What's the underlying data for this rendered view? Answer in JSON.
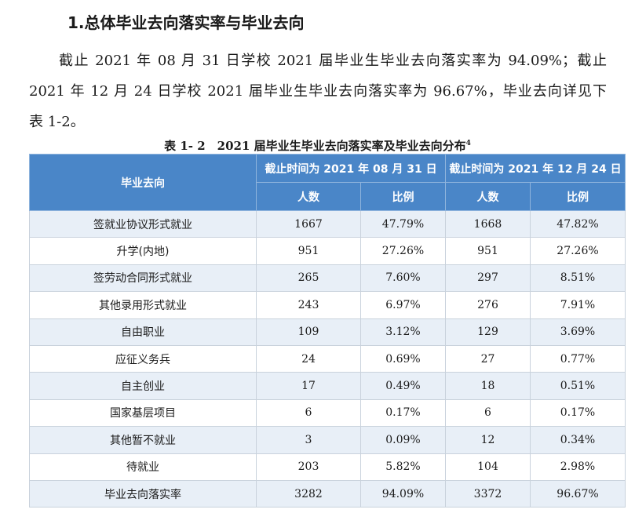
{
  "heading": "1.总体毕业去向落实率与毕业去向",
  "paragraph": {
    "line1": "截止 2021 年 08 月 31 日学校 2021 届毕业生毕业去向落实率为 94.09%；截止",
    "line2": "2021 年 12 月 24 日学校 2021 届毕业生毕业去向落实率为 96.67%，毕业去向详见下",
    "line3": "表 1-2。"
  },
  "table": {
    "caption": "表 1- 2　2021 届毕业生毕业去向落实率及毕业去向分布",
    "caption_note": "4",
    "header": {
      "category": "毕业去向",
      "period1": "截止时间为 2021 年 08 月 31 日",
      "period2": "截止时间为 2021 年 12 月 24 日",
      "count": "人数",
      "ratio": "比例"
    },
    "rows": [
      {
        "category": "签就业协议形式就业",
        "count1": "1667",
        "ratio1": "47.79%",
        "count2": "1668",
        "ratio2": "47.82%"
      },
      {
        "category": "升学(内地)",
        "count1": "951",
        "ratio1": "27.26%",
        "count2": "951",
        "ratio2": "27.26%"
      },
      {
        "category": "签劳动合同形式就业",
        "count1": "265",
        "ratio1": "7.60%",
        "count2": "297",
        "ratio2": "8.51%"
      },
      {
        "category": "其他录用形式就业",
        "count1": "243",
        "ratio1": "6.97%",
        "count2": "276",
        "ratio2": "7.91%"
      },
      {
        "category": "自由职业",
        "count1": "109",
        "ratio1": "3.12%",
        "count2": "129",
        "ratio2": "3.69%"
      },
      {
        "category": "应征义务兵",
        "count1": "24",
        "ratio1": "0.69%",
        "count2": "27",
        "ratio2": "0.77%"
      },
      {
        "category": "自主创业",
        "count1": "17",
        "ratio1": "0.49%",
        "count2": "18",
        "ratio2": "0.51%"
      },
      {
        "category": "国家基层项目",
        "count1": "6",
        "ratio1": "0.17%",
        "count2": "6",
        "ratio2": "0.17%"
      },
      {
        "category": "其他暂不就业",
        "count1": "3",
        "ratio1": "0.09%",
        "count2": "12",
        "ratio2": "0.34%"
      },
      {
        "category": "待就业",
        "count1": "203",
        "ratio1": "5.82%",
        "count2": "104",
        "ratio2": "2.98%"
      },
      {
        "category": "毕业去向落实率",
        "count1": "3282",
        "ratio1": "94.09%",
        "count2": "3372",
        "ratio2": "96.67%"
      }
    ],
    "colors": {
      "header_bg": "#4a86c8",
      "header_text": "#ffffff",
      "stripe_bg": "#e8eff7",
      "border": "#c9d2dc"
    }
  }
}
